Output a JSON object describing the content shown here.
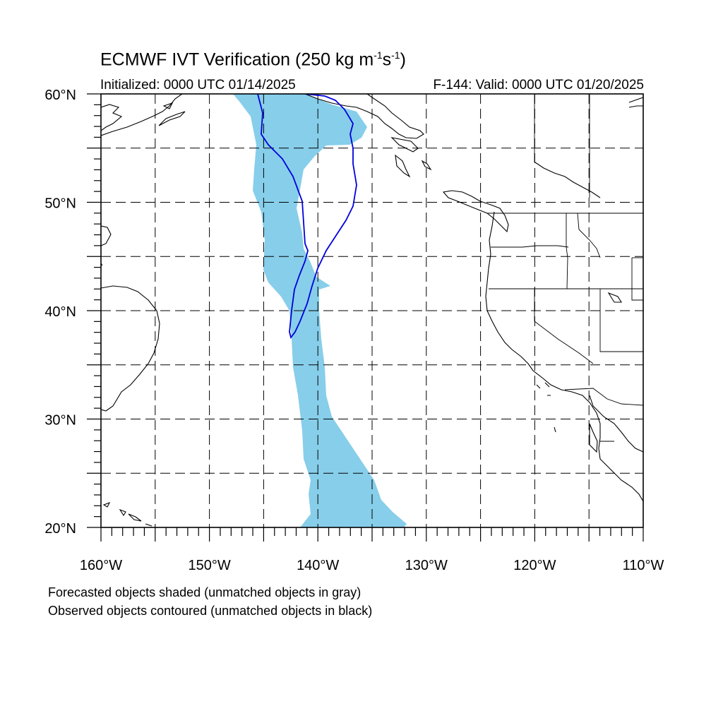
{
  "title": {
    "main": "ECMWF IVT Verification (250 kg m",
    "sup1": "-1",
    "mid": "s",
    "sup2": "-1",
    "close": ")"
  },
  "subtitle": {
    "initialized": "Initialized: 0000 UTC 01/14/2025",
    "valid": "F-144: Valid: 0000 UTC 01/20/2025"
  },
  "map": {
    "extent": {
      "lon_min": -160,
      "lon_max": -110,
      "lat_min": 20,
      "lat_max": 60
    },
    "lon_labels": [
      "160°W",
      "150°W",
      "140°W",
      "130°W",
      "120°W",
      "110°W"
    ],
    "lat_labels": [
      "20°N",
      "30°N",
      "40°N",
      "50°N",
      "60°N"
    ],
    "colors": {
      "forecast_fill": "#87ceea",
      "observed_contour": "#0000dd",
      "coast": "#000000",
      "grid": "#000000"
    }
  },
  "legend": {
    "line1": "Forecasted objects shaded (unmatched objects in gray)",
    "line2": "Observed objects contoured (unmatched objects in black)"
  }
}
